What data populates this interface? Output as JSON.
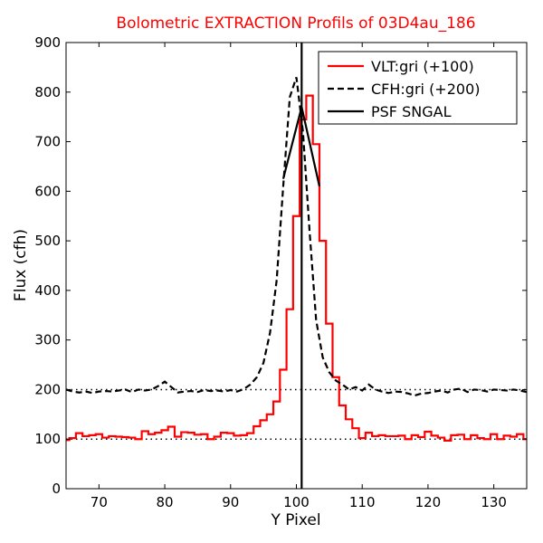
{
  "chart_data": {
    "type": "line",
    "title": "Bolometric EXTRACTION Profils of 03D4au_186",
    "title_color": "#ff0000",
    "xlabel": "Y Pixel",
    "ylabel": "Flux (cfh)",
    "xlim": [
      65,
      135
    ],
    "ylim": [
      0,
      900
    ],
    "xticks": [
      70,
      80,
      90,
      100,
      110,
      120,
      130
    ],
    "yticks": [
      0,
      100,
      200,
      300,
      400,
      500,
      600,
      700,
      800,
      900
    ],
    "grid": false,
    "legend_position": "top-right",
    "reference_lines": [
      {
        "y": 100,
        "style": "dotted",
        "color": "#000000"
      },
      {
        "y": 200,
        "style": "dotted",
        "color": "#000000"
      }
    ],
    "series": [
      {
        "name": "VLT:gri (+100)",
        "style": "steps",
        "color": "#ff0000",
        "x": [
          65,
          66,
          67,
          68,
          69,
          70,
          71,
          72,
          73,
          74,
          75,
          76,
          77,
          78,
          79,
          80,
          81,
          82,
          83,
          84,
          85,
          86,
          87,
          88,
          89,
          90,
          91,
          92,
          93,
          94,
          95,
          96,
          97,
          98,
          99,
          100,
          101,
          102,
          103,
          104,
          105,
          106,
          107,
          108,
          109,
          110,
          111,
          112,
          113,
          114,
          115,
          116,
          117,
          118,
          119,
          120,
          121,
          122,
          123,
          124,
          125,
          126,
          127,
          128,
          129,
          130,
          131,
          132,
          133,
          134,
          135
        ],
        "y": [
          98,
          102,
          112,
          106,
          108,
          110,
          103,
          106,
          105,
          104,
          103,
          100,
          116,
          110,
          113,
          118,
          125,
          105,
          114,
          113,
          109,
          110,
          100,
          105,
          113,
          112,
          107,
          108,
          112,
          126,
          138,
          150,
          176,
          240,
          362,
          550,
          745,
          793,
          695,
          500,
          333,
          225,
          168,
          140,
          122,
          102,
          113,
          106,
          108,
          106,
          106,
          107,
          100,
          108,
          104,
          115,
          107,
          103,
          97,
          108,
          109,
          100,
          108,
          102,
          100,
          110,
          100,
          107,
          105,
          110,
          100
        ]
      },
      {
        "name": "CFH:gri (+200)",
        "style": "dashed",
        "color": "#000000",
        "x": [
          65,
          66,
          67,
          68,
          69,
          70,
          71,
          72,
          73,
          74,
          75,
          76,
          77,
          78,
          79,
          80,
          81,
          82,
          83,
          84,
          85,
          86,
          87,
          88,
          89,
          90,
          91,
          92,
          93,
          94,
          95,
          96,
          97,
          98,
          99,
          100,
          101,
          102,
          103,
          104,
          105,
          106,
          107,
          108,
          109,
          110,
          111,
          112,
          113,
          114,
          115,
          116,
          117,
          118,
          119,
          120,
          121,
          122,
          123,
          124,
          125,
          126,
          127,
          128,
          129,
          130,
          131,
          132,
          133,
          134,
          135
        ],
        "y": [
          200,
          196,
          194,
          196,
          193,
          196,
          197,
          196,
          198,
          200,
          195,
          200,
          198,
          200,
          207,
          216,
          205,
          194,
          196,
          197,
          195,
          199,
          197,
          198,
          196,
          199,
          196,
          201,
          210,
          225,
          254,
          315,
          420,
          610,
          790,
          830,
          720,
          520,
          340,
          265,
          235,
          218,
          210,
          200,
          205,
          198,
          210,
          200,
          196,
          193,
          196,
          195,
          192,
          188,
          192,
          193,
          196,
          198,
          194,
          200,
          202,
          195,
          200,
          199,
          196,
          200,
          199,
          198,
          200,
          198,
          195
        ]
      },
      {
        "name": "PSF SNGAL",
        "style": "solid",
        "color": "#000000",
        "vertical_line_x": 100.8,
        "x": [
          98.0,
          100.8,
          103.5
        ],
        "y": [
          625,
          770,
          610
        ]
      }
    ]
  }
}
